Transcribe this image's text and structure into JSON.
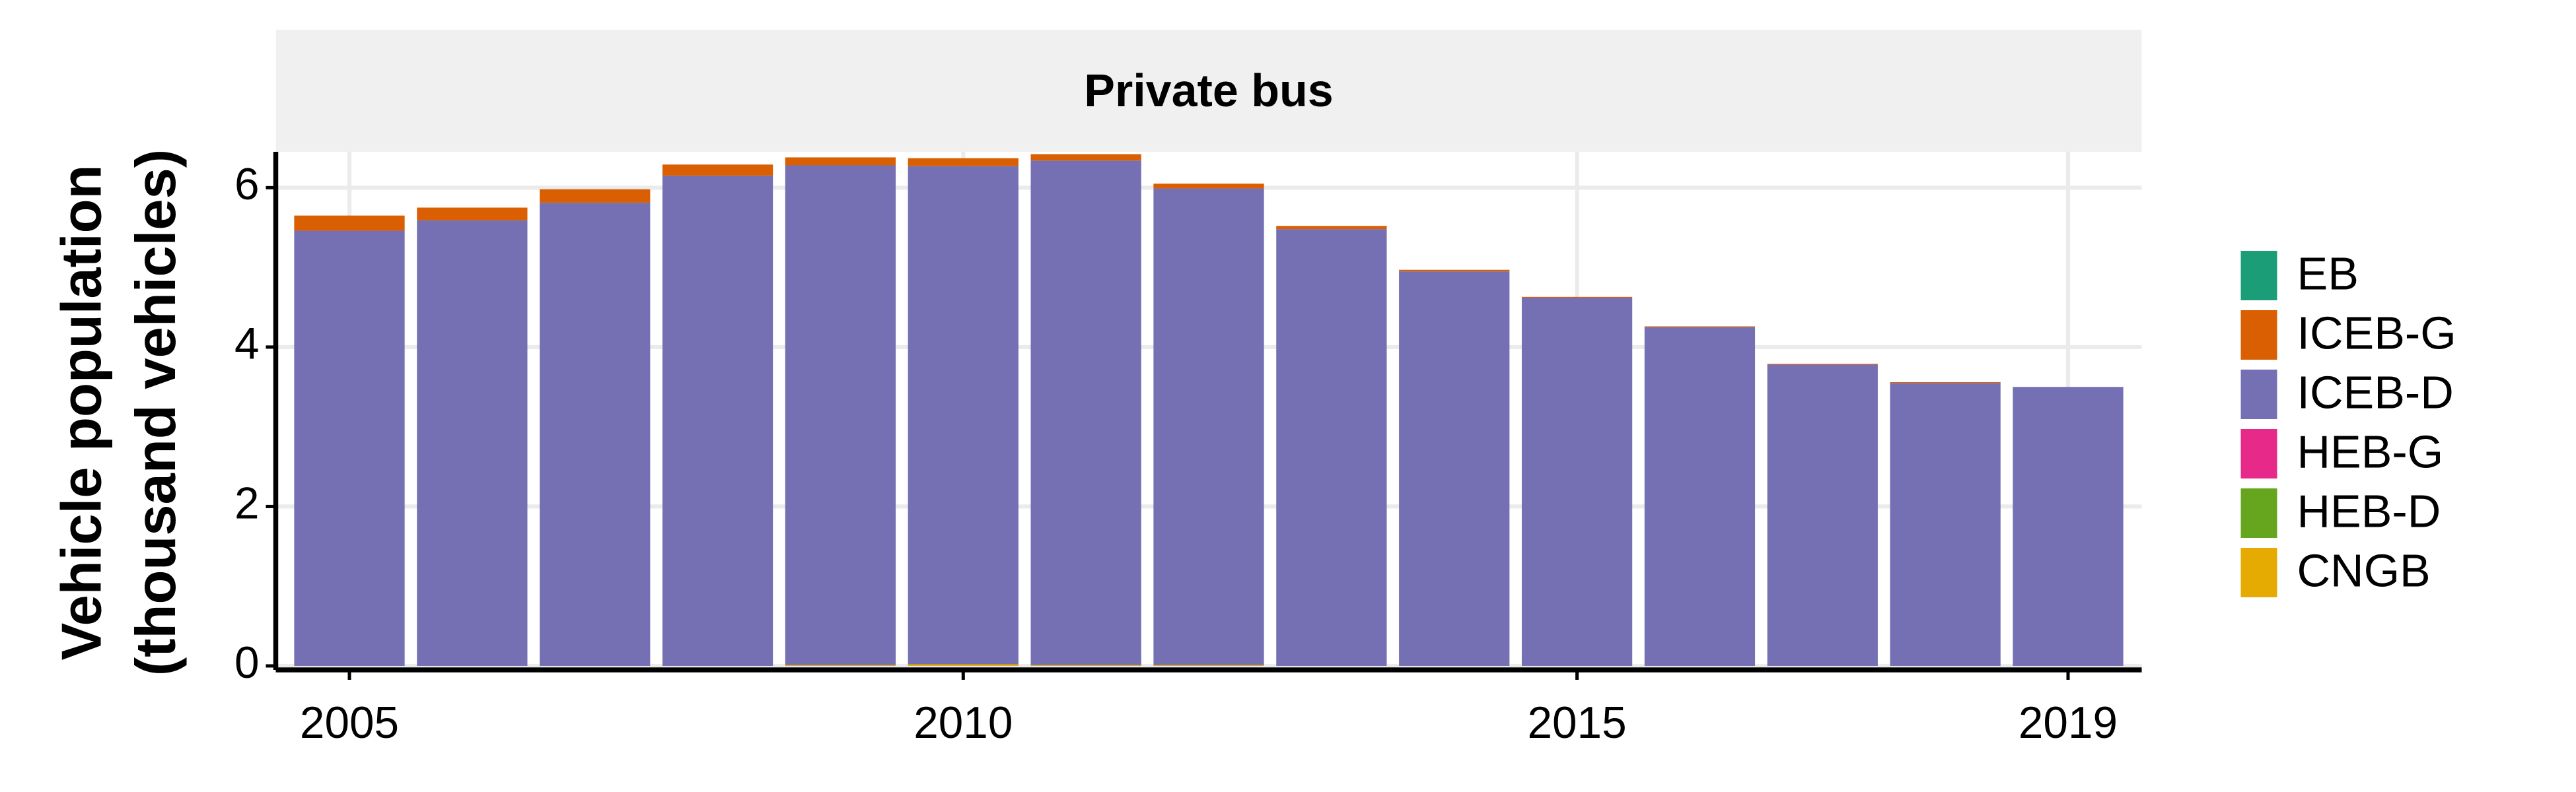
{
  "chart_data": {
    "type": "stacked_bar",
    "title": "Private bus",
    "ylabel": [
      "Vehicle population",
      "(thousand vehicles)"
    ],
    "x": [
      2005,
      2006,
      2007,
      2008,
      2009,
      2010,
      2011,
      2012,
      2013,
      2014,
      2015,
      2016,
      2017,
      2018,
      2019
    ],
    "series": [
      {
        "name": "EB",
        "color": "#1b9e77",
        "values": [
          0,
          0,
          0,
          0,
          0,
          0,
          0,
          0,
          0,
          0,
          0,
          0,
          0,
          0,
          0
        ]
      },
      {
        "name": "ICEB-G",
        "color": "#d95f02",
        "values": [
          0.19,
          0.16,
          0.17,
          0.14,
          0.1,
          0.1,
          0.08,
          0.06,
          0.04,
          0.02,
          0.01,
          0.01,
          0.01,
          0.01,
          0
        ]
      },
      {
        "name": "ICEB-D",
        "color": "#7570b3",
        "values": [
          5.46,
          5.59,
          5.81,
          6.15,
          6.27,
          6.25,
          6.33,
          5.98,
          5.48,
          4.95,
          4.62,
          4.25,
          3.78,
          3.55,
          3.5
        ]
      },
      {
        "name": "HEB-G",
        "color": "#e7298a",
        "values": [
          0,
          0,
          0,
          0,
          0,
          0,
          0,
          0,
          0,
          0,
          0,
          0,
          0,
          0,
          0
        ]
      },
      {
        "name": "HEB-D",
        "color": "#66a61e",
        "values": [
          0,
          0,
          0,
          0,
          0,
          0,
          0,
          0,
          0,
          0,
          0,
          0,
          0,
          0,
          0
        ]
      },
      {
        "name": "CNGB",
        "color": "#e6ab02",
        "values": [
          0,
          0,
          0,
          0,
          0.01,
          0.02,
          0.01,
          0.01,
          0,
          0,
          0,
          0,
          0,
          0,
          0
        ]
      }
    ],
    "xlim": [
      2004.4,
      2019.6
    ],
    "xticks": [
      2005,
      2010,
      2015,
      2019
    ],
    "ylim": [
      -0.05,
      6.45
    ],
    "yticks": [
      0,
      2,
      4,
      6
    ],
    "grid": true,
    "legend": "right"
  }
}
